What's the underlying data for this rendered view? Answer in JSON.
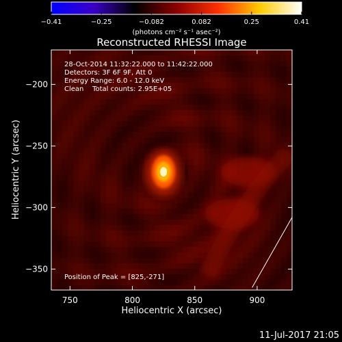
{
  "chart_data": {
    "type": "heatmap",
    "title": "Reconstructed RHESSI Image",
    "xlabel": "Heliocentric X (arcsec)",
    "ylabel": "Heliocentric Y (arcsec)",
    "xlim": [
      735,
      928
    ],
    "ylim": [
      -367,
      -172
    ],
    "x_ticks": [
      {
        "value": 750,
        "label": "750"
      },
      {
        "value": 800,
        "label": "800"
      },
      {
        "value": 850,
        "label": "850"
      },
      {
        "value": 900,
        "label": "900"
      }
    ],
    "y_ticks": [
      {
        "value": -200,
        "label": "−200"
      },
      {
        "value": -250,
        "label": "−250"
      },
      {
        "value": -300,
        "label": "−300"
      },
      {
        "value": -350,
        "label": "−350"
      }
    ],
    "annotations": [
      "28-Oct-2014 11:32:22.000 to 11:42:22.000",
      "Detectors: 3F 6F 9F, Att 0",
      "Energy Range: 6.0 - 12.0 keV",
      "Clean    Total counts: 2.95E+05"
    ],
    "peak_text": "Position of Peak = [825,-271]",
    "peak": {
      "x": 825,
      "y": -271
    },
    "secondary_sources": [
      {
        "x": 893,
        "y": -271,
        "intensity": 0.16
      },
      {
        "x": 880,
        "y": -305,
        "intensity": 0.2
      }
    ],
    "colorbar": {
      "range": [
        -0.41,
        0.41
      ],
      "ticks": [
        "−0.41",
        "−0.25",
        "−0.082",
        "0.082",
        "0.25",
        "0.41"
      ],
      "units_label": "(photons cm⁻² s⁻¹ asec⁻²)",
      "colormap": [
        "#0000ff",
        "#3a00c8",
        "#000000",
        "#8a0000",
        "#ff3000",
        "#ffcc00",
        "#ffffff"
      ]
    },
    "limb_line": {
      "x": [
        928,
        896
      ],
      "y": [
        -308,
        -365
      ]
    },
    "grid": false
  },
  "footer": {
    "timestamp": "11-Jul-2017 21:05"
  }
}
